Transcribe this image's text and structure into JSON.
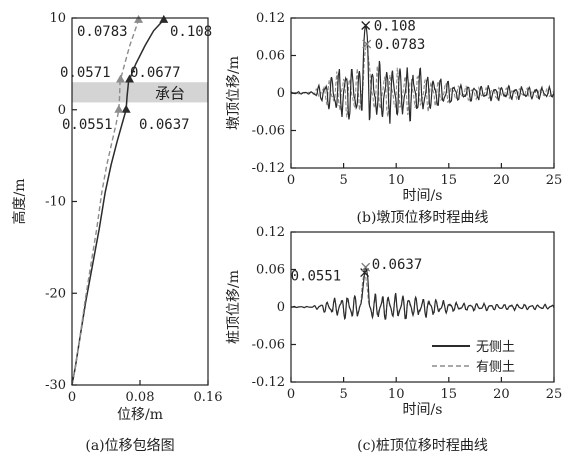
{
  "colors": {
    "no_soil": "#2b2b2b",
    "with_soil": "#8c8c8c",
    "pile_cap_band": "#d4d4d4"
  },
  "chart_data": [
    {
      "id": "a",
      "type": "line",
      "caption": "(a)位移包络图",
      "xlabel": "位移/m",
      "ylabel": "高度/m",
      "xlim": [
        0,
        0.16
      ],
      "ylim": [
        -30,
        10
      ],
      "xticks": [
        "0",
        "0.08",
        "0.16"
      ],
      "yticks": [
        "-30",
        "-20",
        "-10",
        "0",
        "10"
      ],
      "band": {
        "label": "承台",
        "y_range": [
          0.8,
          3.0
        ]
      },
      "series": [
        {
          "key": "no_soil",
          "style": "solid",
          "marker": "triangle",
          "points": [
            [
              0.0,
              -30
            ],
            [
              0.004,
              -28
            ],
            [
              0.009,
              -25
            ],
            [
              0.016,
              -21
            ],
            [
              0.024,
              -17
            ],
            [
              0.032,
              -13
            ],
            [
              0.039,
              -9
            ],
            [
              0.046,
              -6
            ],
            [
              0.053,
              -3.5
            ],
            [
              0.059,
              -1.5
            ],
            [
              0.0637,
              0.0
            ],
            [
              0.0648,
              1.5
            ],
            [
              0.0665,
              3.0
            ],
            [
              0.0677,
              3.3
            ],
            [
              0.075,
              5.0
            ],
            [
              0.086,
              7.0
            ],
            [
              0.096,
              8.6
            ],
            [
              0.108,
              9.8
            ]
          ],
          "markers": [
            [
              0.0637,
              0.0
            ],
            [
              0.0677,
              3.3
            ],
            [
              0.108,
              9.8
            ]
          ]
        },
        {
          "key": "with_soil",
          "style": "dashed",
          "marker": "triangle",
          "points": [
            [
              0.0,
              -30
            ],
            [
              0.004,
              -28
            ],
            [
              0.009,
              -25
            ],
            [
              0.015,
              -21
            ],
            [
              0.022,
              -17
            ],
            [
              0.029,
              -13
            ],
            [
              0.035,
              -9
            ],
            [
              0.041,
              -6
            ],
            [
              0.047,
              -3.5
            ],
            [
              0.052,
              -1.5
            ],
            [
              0.0551,
              0.0
            ],
            [
              0.056,
              1.5
            ],
            [
              0.0565,
              3.0
            ],
            [
              0.0571,
              3.3
            ],
            [
              0.062,
              5.0
            ],
            [
              0.068,
              7.0
            ],
            [
              0.074,
              8.6
            ],
            [
              0.0783,
              9.8
            ]
          ],
          "markers": [
            [
              0.0551,
              0.0
            ],
            [
              0.0571,
              3.3
            ],
            [
              0.0783,
              9.8
            ]
          ]
        }
      ],
      "annotations": [
        "0.0783",
        "0.108",
        "0.0571",
        "0.0677",
        "0.0551",
        "0.0637"
      ]
    },
    {
      "id": "b",
      "type": "line",
      "caption": "(b)墩顶位移时程曲线",
      "xlabel": "时间/s",
      "ylabel": "墩顶位移/m",
      "xlim": [
        0,
        25
      ],
      "ylim": [
        -0.12,
        0.12
      ],
      "xticks": [
        "0",
        "5",
        "10",
        "15",
        "20",
        "25"
      ],
      "yticks": [
        "-0.12",
        "-0.06",
        "0",
        "0.06",
        "0.12"
      ],
      "peaks": [
        {
          "label": "0.108",
          "t": 7.1,
          "v": 0.108
        },
        {
          "label": "0.0783",
          "t": 7.2,
          "v": 0.0783
        }
      ],
      "series": [
        {
          "key": "no_soil",
          "style": "solid",
          "seed": 3,
          "peak_t": 7.1,
          "peak_v": 0.108,
          "base": 0.045
        },
        {
          "key": "with_soil",
          "style": "dashed",
          "seed": 7,
          "peak_t": 7.2,
          "peak_v": 0.0783,
          "base": 0.036
        }
      ]
    },
    {
      "id": "c",
      "type": "line",
      "caption": "(c)桩顶位移时程曲线",
      "xlabel": "时间/s",
      "ylabel": "桩顶位移/m",
      "xlim": [
        0,
        25
      ],
      "ylim": [
        -0.12,
        0.12
      ],
      "xticks": [
        "0",
        "5",
        "10",
        "15",
        "20",
        "25"
      ],
      "yticks": [
        "-0.12",
        "-0.06",
        "0",
        "0.06",
        "0.12"
      ],
      "peaks": [
        {
          "label": "0.0551",
          "t": 7.0,
          "v": 0.0551
        },
        {
          "label": "0.0637",
          "t": 7.1,
          "v": 0.0637
        }
      ],
      "legend": {
        "placement": "bottom-right",
        "entries": [
          {
            "key": "no_soil",
            "label": "无侧土",
            "style": "solid"
          },
          {
            "key": "with_soil",
            "label": "有侧土",
            "style": "dashed"
          }
        ]
      },
      "series": [
        {
          "key": "no_soil",
          "style": "solid",
          "seed": 5,
          "peak_t": 7.1,
          "peak_v": 0.0637,
          "base": 0.02
        },
        {
          "key": "with_soil",
          "style": "dashed",
          "seed": 11,
          "peak_t": 7.0,
          "peak_v": 0.0551,
          "base": 0.016
        }
      ]
    }
  ]
}
